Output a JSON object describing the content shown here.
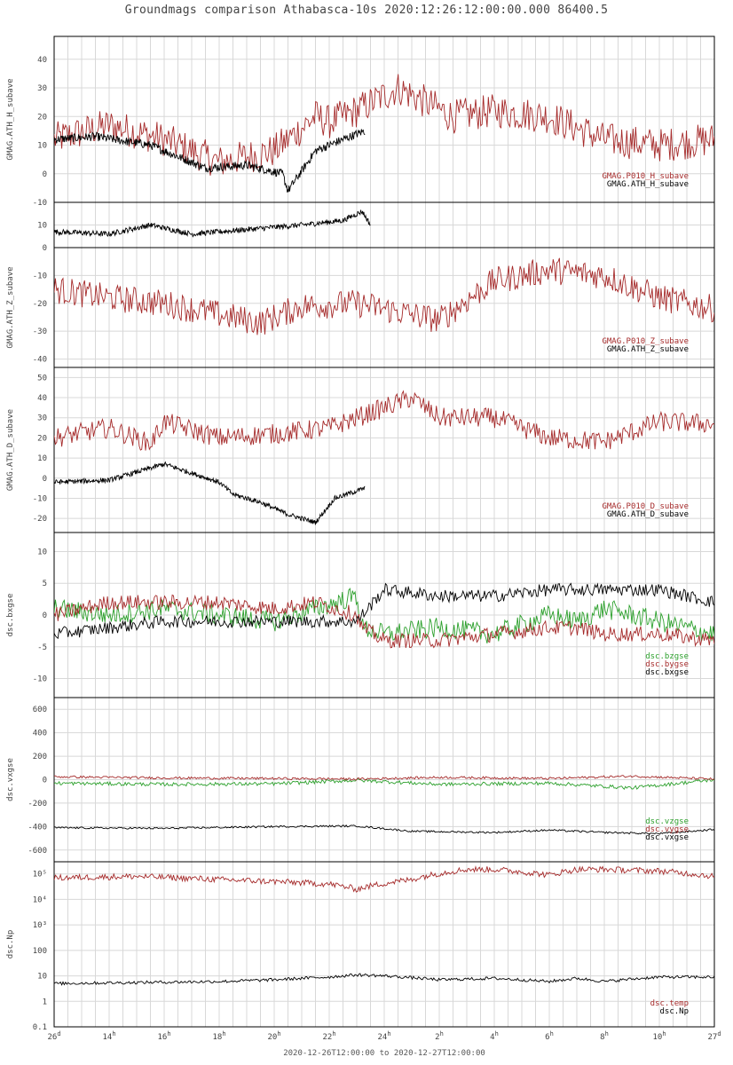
{
  "title": "Groundmags comparison Athabasca-10s 2020:12:26:12:00:00.000 86400.5",
  "x_range_label": "2020-12-26T12:00:00 to 2020-12-27T12:00:00",
  "colors": {
    "red": "#a52a2a",
    "black": "#000000",
    "green": "#2ca02c",
    "grid": "#d8d8d8"
  },
  "chart_data": [
    {
      "id": "h",
      "type": "line",
      "ylabel": "GMAG.ATH_H_subave",
      "ylim": [
        -10,
        48
      ],
      "yticks": [
        -10,
        0,
        10,
        20,
        30,
        40
      ],
      "x": [
        "26d",
        "14h",
        "16h",
        "18h",
        "20h",
        "22h",
        "24h",
        "2h",
        "4h",
        "6h",
        "8h",
        "10h",
        "27d"
      ],
      "series": [
        {
          "name": "GMAG.P010_H_subave",
          "color": "#a52a2a",
          "knots_x": [
            0,
            2,
            4,
            6,
            8,
            9.5,
            10,
            11,
            12.5,
            14.5,
            16,
            18,
            20,
            22,
            24
          ],
          "knots_y": [
            12,
            17,
            12,
            4,
            8,
            20,
            18,
            22,
            30,
            20,
            22,
            20,
            12,
            10,
            12
          ],
          "noise": 6
        },
        {
          "name": "GMAG.ATH_H_subave",
          "color": "#000000",
          "knots_x": [
            0,
            1.5,
            3.5,
            5.5,
            7,
            8.3,
            8.5,
            9.5,
            10.5,
            11.3
          ],
          "knots_y": [
            12,
            13,
            10,
            2,
            3,
            0,
            -6,
            8,
            12,
            15
          ],
          "noise": 1.5
        }
      ],
      "legend": [
        "GMAG.P010_H_subave",
        "GMAG.ATH_H_subave"
      ]
    },
    {
      "id": "h2",
      "type": "line",
      "ylabel": "",
      "ylim": [
        0,
        20
      ],
      "yticks": [
        10
      ],
      "series": [
        {
          "name": "GMAG.ATH_H_subave",
          "color": "#000000",
          "knots_x": [
            0,
            2,
            3.5,
            5,
            7,
            9,
            10.5,
            11.2,
            11.5
          ],
          "knots_y": [
            7,
            6,
            10,
            6,
            8,
            10,
            12,
            16,
            10
          ],
          "noise": 1.2
        }
      ]
    },
    {
      "id": "z",
      "type": "line",
      "ylabel": "GMAG.ATH_Z_subave",
      "ylim": [
        -43,
        0
      ],
      "yticks": [
        -40,
        -30,
        -20,
        -10,
        0
      ],
      "series": [
        {
          "name": "GMAG.P010_Z_subave",
          "color": "#a52a2a",
          "knots_x": [
            0,
            2,
            4,
            6,
            7.5,
            9,
            11,
            13,
            14,
            16,
            18,
            20,
            22,
            24
          ],
          "knots_y": [
            -15,
            -18,
            -20,
            -24,
            -27,
            -21,
            -20,
            -24,
            -26,
            -12,
            -8,
            -10,
            -18,
            -22
          ],
          "noise": 5
        }
      ],
      "legend": [
        "GMAG.P010_Z_subave",
        "GMAG.ATH_Z_subave"
      ]
    },
    {
      "id": "d",
      "type": "line",
      "ylabel": "GMAG.ATH_D_subave",
      "ylim": [
        -27,
        55
      ],
      "yticks": [
        -20,
        -10,
        0,
        10,
        20,
        30,
        40,
        50
      ],
      "series": [
        {
          "name": "GMAG.P010_D_subave",
          "color": "#a52a2a",
          "knots_x": [
            0,
            2,
            3.5,
            4,
            6,
            8,
            10,
            12,
            13,
            14,
            16,
            18,
            20,
            22,
            24
          ],
          "knots_y": [
            20,
            25,
            17,
            28,
            20,
            22,
            25,
            35,
            40,
            30,
            30,
            20,
            18,
            28,
            27
          ],
          "noise": 5
        },
        {
          "name": "GMAG.ATH_D_subave",
          "color": "#000000",
          "knots_x": [
            0,
            2,
            4,
            6,
            6.5,
            7.5,
            8.5,
            9.5,
            10.2,
            11.3
          ],
          "knots_y": [
            -2,
            -1,
            7,
            -2,
            -8,
            -12,
            -18,
            -22,
            -10,
            -5
          ],
          "noise": 1.2
        }
      ],
      "legend": [
        "GMAG.P010_D_subave",
        "GMAG.ATH_D_subave"
      ]
    },
    {
      "id": "b",
      "type": "line",
      "ylabel": "dsc.bxgse",
      "ylim": [
        -13,
        13
      ],
      "yticks": [
        -10,
        -5,
        0,
        5,
        10
      ],
      "series": [
        {
          "name": "dsc.bzgse",
          "color": "#2ca02c",
          "knots_x": [
            0,
            2,
            4,
            6,
            8,
            9.5,
            11,
            11.2,
            12,
            14,
            16,
            18,
            19,
            20,
            22,
            24
          ],
          "knots_y": [
            1,
            0,
            1,
            0,
            -1,
            1,
            3,
            -2,
            -3,
            -2,
            -3,
            0,
            -1,
            1,
            -1,
            -3
          ],
          "noise": 1.6
        },
        {
          "name": "dsc.bygse",
          "color": "#a52a2a",
          "knots_x": [
            0,
            2,
            4,
            6,
            8,
            9.5,
            11,
            11.2,
            12,
            14,
            16,
            18,
            19,
            20,
            22,
            24
          ],
          "knots_y": [
            0,
            2,
            2,
            2,
            1,
            2,
            0,
            -2,
            -4,
            -4,
            -3,
            -2,
            -2,
            -3,
            -3,
            -4
          ],
          "noise": 1.2
        },
        {
          "name": "dsc.bxgse",
          "color": "#000000",
          "knots_x": [
            0,
            2,
            4,
            6,
            8,
            9.5,
            11,
            11.2,
            12,
            14,
            16,
            18,
            19,
            20,
            22,
            24
          ],
          "knots_y": [
            -3,
            -2,
            -1,
            -1,
            -1,
            -1,
            -1,
            0,
            4,
            3,
            3,
            4,
            4,
            4,
            4,
            2
          ],
          "noise": 1.0
        }
      ],
      "legend": [
        "dsc.bzgse",
        "dsc.bygse",
        "dsc.bxgse"
      ]
    },
    {
      "id": "v",
      "type": "line",
      "ylabel": "dsc.vxgse",
      "ylim": [
        -700,
        700
      ],
      "yticks": [
        -600,
        -400,
        -200,
        0,
        200,
        400,
        600
      ],
      "series": [
        {
          "name": "dsc.vzgse",
          "color": "#2ca02c",
          "knots_x": [
            0,
            4,
            8,
            11,
            14,
            18,
            21,
            24
          ],
          "knots_y": [
            -30,
            -40,
            -35,
            -5,
            -40,
            -30,
            -70,
            0
          ],
          "noise": 15
        },
        {
          "name": "dsc.vygse",
          "color": "#a52a2a",
          "knots_x": [
            0,
            4,
            8,
            11,
            14,
            18,
            21,
            24
          ],
          "knots_y": [
            25,
            15,
            10,
            5,
            20,
            10,
            30,
            5
          ],
          "noise": 10
        },
        {
          "name": "dsc.vxgse",
          "color": "#000000",
          "knots_x": [
            0,
            4,
            8,
            11,
            13,
            16,
            18,
            20,
            22,
            24
          ],
          "knots_y": [
            -410,
            -415,
            -400,
            -395,
            -440,
            -450,
            -430,
            -450,
            -460,
            -425
          ],
          "noise": 8
        }
      ],
      "legend": [
        "dsc.vzgse",
        "dsc.vygse",
        "dsc.vxgse"
      ]
    },
    {
      "id": "np",
      "type": "line",
      "ylabel": "dsc.Np",
      "yscale": "log",
      "ylim": [
        0.1,
        300000
      ],
      "yticks": [
        0.1,
        1,
        10,
        100,
        1000,
        10000,
        100000
      ],
      "ytick_labels": [
        "0.1",
        "1",
        "10",
        "100",
        "10³",
        "10⁴",
        "10⁵"
      ],
      "series": [
        {
          "name": "dsc.temp",
          "color": "#a52a2a",
          "knots_x": [
            0,
            3,
            6,
            8,
            10,
            11,
            13,
            15,
            16,
            18,
            19,
            20,
            22,
            24
          ],
          "knots_y": [
            70000,
            80000,
            60000,
            50000,
            40000,
            25000,
            60000,
            150000,
            150000,
            90000,
            150000,
            150000,
            130000,
            80000
          ],
          "noise": 0.12,
          "log": true
        },
        {
          "name": "dsc.Np",
          "color": "#000000",
          "knots_x": [
            0,
            3,
            6,
            8,
            10,
            11,
            12,
            14,
            16,
            18,
            19,
            20,
            22,
            24
          ],
          "knots_y": [
            5,
            5.5,
            6,
            7,
            9,
            11,
            10,
            7,
            8,
            6,
            8,
            6,
            9,
            9
          ],
          "noise": 0.06,
          "log": true
        }
      ],
      "legend": [
        "dsc.temp",
        "dsc.Np"
      ]
    }
  ],
  "x_ticks": [
    {
      "label": "26",
      "sup": "d"
    },
    {
      "label": "14",
      "sup": "h"
    },
    {
      "label": "16",
      "sup": "h"
    },
    {
      "label": "18",
      "sup": "h"
    },
    {
      "label": "20",
      "sup": "h"
    },
    {
      "label": "22",
      "sup": "h"
    },
    {
      "label": "24",
      "sup": "h"
    },
    {
      "label": "2",
      "sup": "h"
    },
    {
      "label": "4",
      "sup": "h"
    },
    {
      "label": "6",
      "sup": "h"
    },
    {
      "label": "8",
      "sup": "h"
    },
    {
      "label": "10",
      "sup": "h"
    },
    {
      "label": "27",
      "sup": "d"
    }
  ]
}
